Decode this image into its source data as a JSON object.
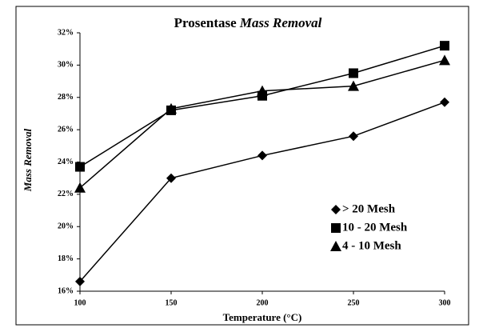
{
  "chart_data": {
    "type": "line",
    "title": [
      "Prosentase",
      "Mass Removal"
    ],
    "x_label": "Temperature (°C)",
    "y_label": "Mass Removal",
    "x": [
      100,
      150,
      200,
      250,
      300
    ],
    "series": [
      {
        "name": "> 20 Mesh",
        "color": "#000000",
        "marker": "diamond",
        "values": [
          16.6,
          23.0,
          24.4,
          25.6,
          27.7
        ]
      },
      {
        "name": "10 - 20 Mesh",
        "color": "#000000",
        "marker": "square",
        "values": [
          23.7,
          27.2,
          28.1,
          29.5,
          31.2
        ]
      },
      {
        "name": "4 - 10 Mesh",
        "color": "#000000",
        "marker": "triangle",
        "values": [
          22.4,
          27.3,
          28.4,
          28.7,
          30.3
        ]
      }
    ],
    "xlim": [
      100,
      300
    ],
    "xticks": [
      100,
      150,
      200,
      250,
      300
    ],
    "ylim": [
      16,
      32
    ],
    "yticks": [
      {
        "value": 16,
        "label": "16%"
      },
      {
        "value": 18,
        "label": "18%"
      },
      {
        "value": 20,
        "label": "20%"
      },
      {
        "value": 22,
        "label": "22%"
      },
      {
        "value": 24,
        "label": "24%"
      },
      {
        "value": 26,
        "label": "26%"
      },
      {
        "value": 28,
        "label": "28%"
      },
      {
        "value": 30,
        "label": "30%"
      },
      {
        "value": 32,
        "label": "32%"
      }
    ],
    "grid": false,
    "legend": "lower right"
  }
}
